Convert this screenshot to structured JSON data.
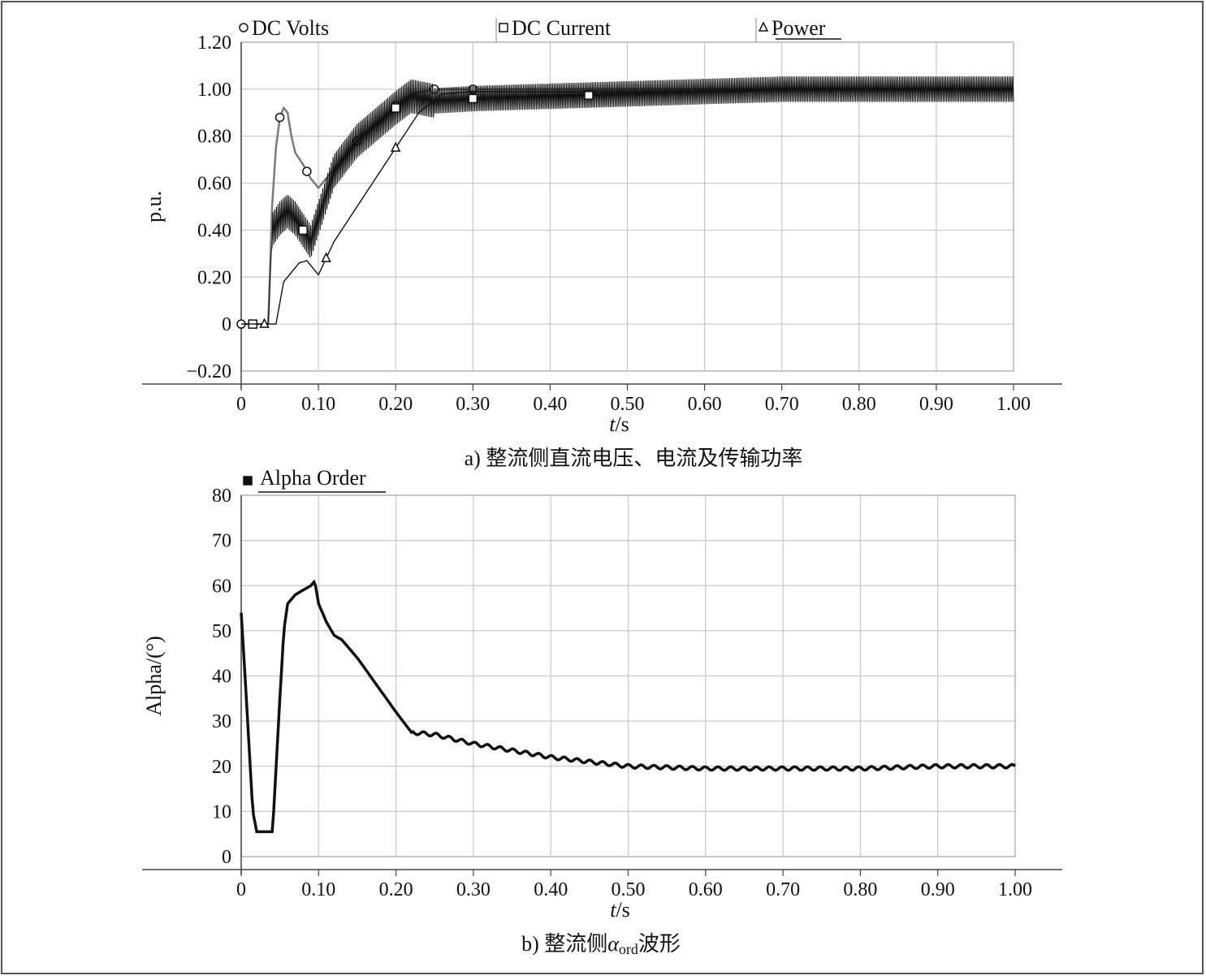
{
  "colors": {
    "grid": "#c8c8c8",
    "trace_dark": "#111111",
    "trace_gray": "#7a7a7a",
    "axis": "#444444"
  },
  "chart_data": [
    {
      "type": "line",
      "caption": "a) 整流侧直流电压、电流及传输功率",
      "xlabel": "t/s",
      "ylabel": "p.u.",
      "xlim": [
        0,
        1.0
      ],
      "ylim": [
        -0.2,
        1.2
      ],
      "xticks": [
        "0",
        "0.10",
        "0.20",
        "0.30",
        "0.40",
        "0.50",
        "0.60",
        "0.70",
        "0.80",
        "0.90",
        "1.00"
      ],
      "yticks": [
        "1.20",
        "1.00",
        "0.80",
        "0.60",
        "0.40",
        "0.20",
        "0",
        "−0.20"
      ],
      "grid": true,
      "legend_position": "top",
      "series": [
        {
          "name": "DC Volts",
          "marker": "circle",
          "x": [
            0,
            0.035,
            0.04,
            0.045,
            0.05,
            0.055,
            0.06,
            0.065,
            0.07,
            0.08,
            0.09,
            0.1,
            0.12,
            0.15,
            0.2,
            0.22,
            0.25,
            0.3,
            0.4,
            0.5,
            0.6,
            0.7,
            0.8,
            0.9,
            1.0
          ],
          "y": [
            0,
            0,
            0.5,
            0.75,
            0.88,
            0.92,
            0.9,
            0.8,
            0.73,
            0.68,
            0.62,
            0.58,
            0.66,
            0.78,
            0.93,
            0.98,
            1.0,
            1.0,
            1.0,
            1.0,
            1.0,
            1.0,
            1.0,
            1.0,
            1.0
          ]
        },
        {
          "name": "DC Current",
          "marker": "square",
          "x": [
            0,
            0.035,
            0.04,
            0.05,
            0.06,
            0.07,
            0.08,
            0.09,
            0.1,
            0.12,
            0.15,
            0.2,
            0.22,
            0.25,
            0.3,
            0.4,
            0.5,
            0.6,
            0.7,
            0.8,
            0.9,
            1.0
          ],
          "y": [
            0,
            0,
            0.4,
            0.45,
            0.48,
            0.45,
            0.4,
            0.35,
            0.45,
            0.65,
            0.78,
            0.92,
            0.97,
            0.95,
            0.96,
            0.97,
            0.98,
            0.99,
            1.0,
            1.0,
            1.0,
            1.0
          ],
          "ripple": 0.06
        },
        {
          "name": "Power",
          "marker": "triangle",
          "x": [
            0,
            0.045,
            0.055,
            0.065,
            0.075,
            0.085,
            0.1,
            0.12,
            0.15,
            0.2,
            0.23,
            0.26,
            0.3,
            0.4,
            0.5,
            0.6,
            0.7,
            0.8,
            0.9,
            1.0
          ],
          "y": [
            0,
            0,
            0.18,
            0.22,
            0.26,
            0.27,
            0.21,
            0.35,
            0.5,
            0.75,
            0.9,
            0.98,
            0.99,
            0.99,
            0.99,
            0.99,
            1.0,
            1.0,
            1.0,
            1.0
          ]
        }
      ]
    },
    {
      "type": "line",
      "caption": "b) 整流侧α_ord波形",
      "xlabel": "t/s",
      "ylabel": "Alpha/(°)",
      "xlim": [
        0,
        1.0
      ],
      "ylim": [
        0,
        80
      ],
      "xticks": [
        "0",
        "0.10",
        "0.20",
        "0.30",
        "0.40",
        "0.50",
        "0.60",
        "0.70",
        "0.80",
        "0.90",
        "1.00"
      ],
      "yticks": [
        "80",
        "70",
        "60",
        "50",
        "40",
        "30",
        "20",
        "10",
        "0"
      ],
      "grid": true,
      "legend_position": "top-left",
      "series": [
        {
          "name": "Alpha Order",
          "marker": "filled-square",
          "x": [
            0,
            0.005,
            0.015,
            0.02,
            0.04,
            0.042,
            0.05,
            0.055,
            0.06,
            0.07,
            0.08,
            0.09,
            0.095,
            0.1,
            0.11,
            0.12,
            0.13,
            0.15,
            0.2,
            0.22,
            0.25,
            0.3,
            0.4,
            0.5,
            0.6,
            0.7,
            0.8,
            0.9,
            1.0
          ],
          "y": [
            54,
            40,
            10,
            5.5,
            5.5,
            10,
            35,
            50,
            56,
            58,
            59,
            60,
            61,
            56,
            52,
            49,
            48,
            44,
            32,
            27.5,
            27,
            25,
            22,
            20,
            19.5,
            19.5,
            19.5,
            20,
            20
          ]
        }
      ]
    }
  ],
  "figure_texts": {
    "t_italic": "t",
    "s_unit": "/s",
    "caption_b_prefix": "b) 整流侧",
    "caption_b_alpha": "α",
    "caption_b_sub": "ord",
    "caption_b_suffix": "波形"
  }
}
